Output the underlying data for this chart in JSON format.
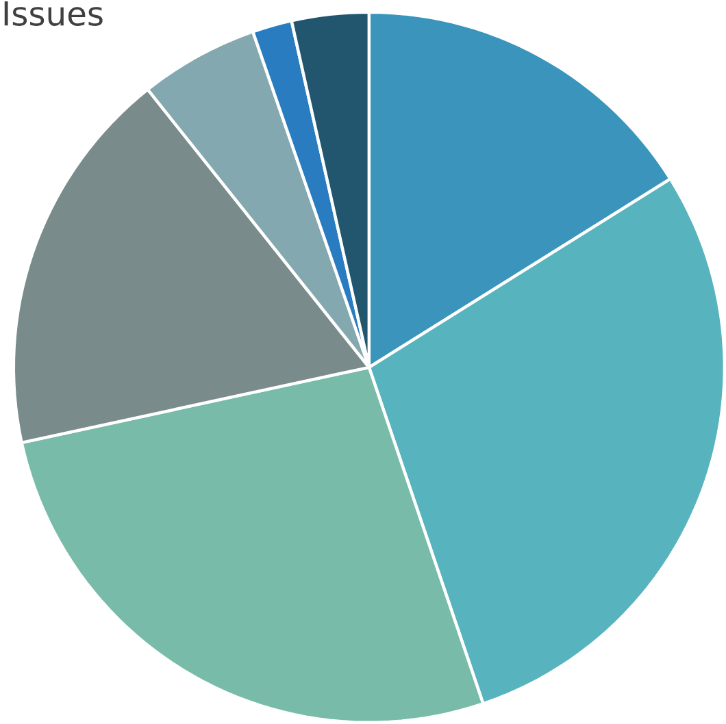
{
  "chart_data": {
    "type": "pie",
    "annotations": [
      "Issues"
    ],
    "categories": [
      null,
      null,
      null,
      null,
      null,
      null,
      null
    ],
    "values": [
      16.1,
      28.7,
      26.8,
      17.7,
      5.4,
      1.8,
      3.5
    ],
    "colors": [
      "#3a94bb",
      "#57b3bd",
      "#78bba8",
      "#7a8b8b",
      "#84a8b0",
      "#2a7cc0",
      "#22566e"
    ]
  }
}
